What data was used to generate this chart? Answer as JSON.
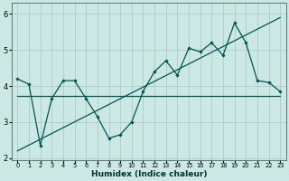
{
  "xlabel": "Humidex (Indice chaleur)",
  "background_color": "#cce8e4",
  "grid_color": "#aacccc",
  "line_color": "#005555",
  "x_data": [
    0,
    1,
    2,
    3,
    4,
    5,
    6,
    7,
    8,
    9,
    10,
    11,
    12,
    13,
    14,
    15,
    16,
    17,
    18,
    19,
    20,
    21,
    22,
    23
  ],
  "series1": [
    4.2,
    4.05,
    2.35,
    3.65,
    4.15,
    4.15,
    3.65,
    3.15,
    2.55,
    2.65,
    3.0,
    3.85,
    4.4,
    4.7,
    4.3,
    5.05,
    4.95,
    5.2,
    4.85,
    5.75,
    5.2,
    4.15,
    4.1,
    3.85
  ],
  "flat_line_x": [
    0,
    23
  ],
  "flat_line_y": [
    3.72,
    3.72
  ],
  "trend_x": [
    0,
    23
  ],
  "trend_y": [
    2.2,
    5.9
  ],
  "xlim": [
    -0.5,
    23.5
  ],
  "ylim": [
    1.95,
    6.3
  ],
  "yticks": [
    2,
    3,
    4,
    5,
    6
  ],
  "xticks": [
    0,
    1,
    2,
    3,
    4,
    5,
    6,
    7,
    8,
    9,
    10,
    11,
    12,
    13,
    14,
    15,
    16,
    17,
    18,
    19,
    20,
    21,
    22,
    23
  ]
}
